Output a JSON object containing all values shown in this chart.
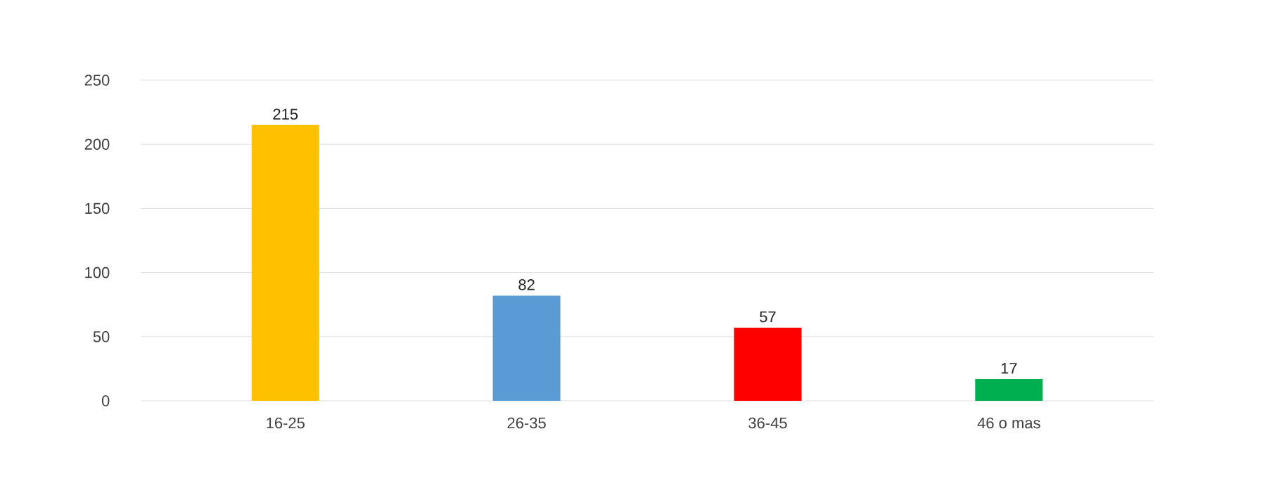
{
  "chart_data": {
    "type": "bar",
    "categories": [
      "16-25",
      "26-35",
      "36-45",
      "46 o mas"
    ],
    "values": [
      215,
      82,
      57,
      17
    ],
    "colors": [
      "#ffc000",
      "#5b9bd5",
      "#ff0000",
      "#00b050"
    ],
    "ylim": [
      0,
      250
    ],
    "yticks": [
      0,
      50,
      100,
      150,
      200,
      250
    ],
    "grid": "y",
    "data_labels": true
  }
}
